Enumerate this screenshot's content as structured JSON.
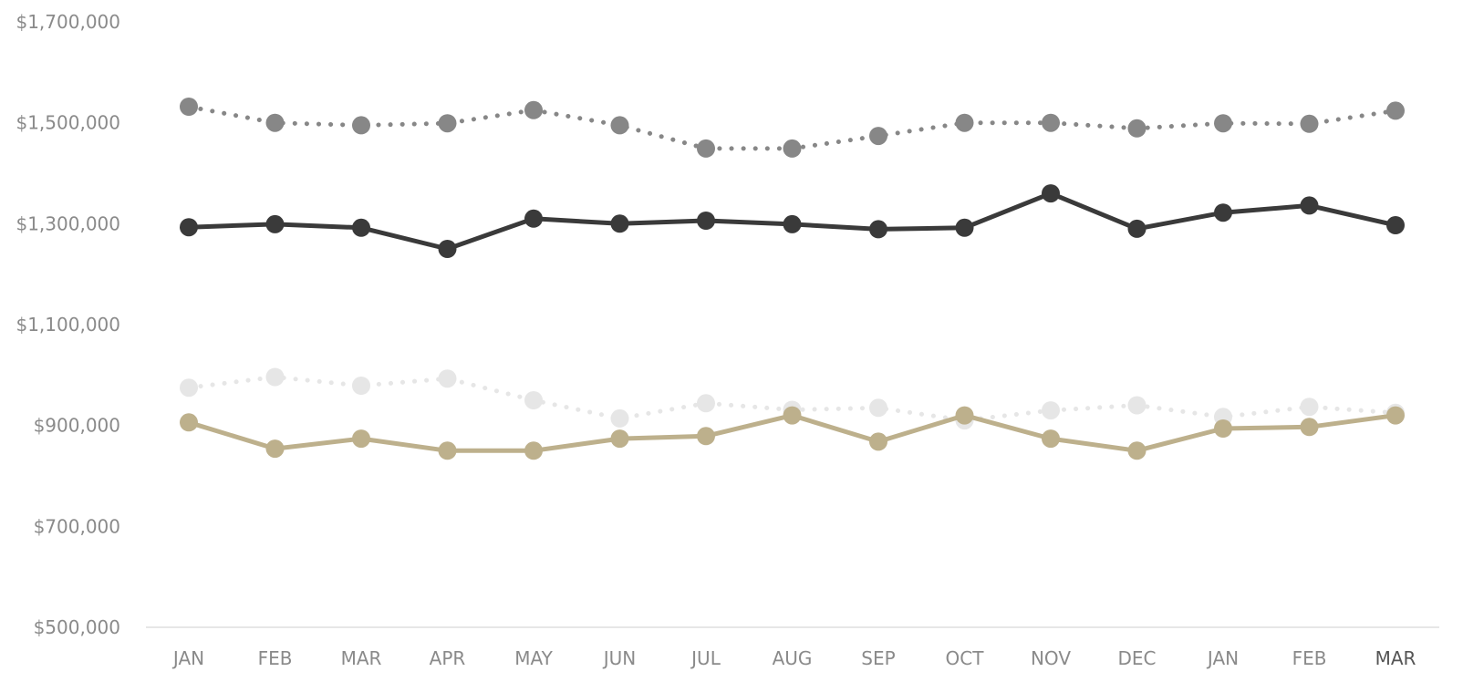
{
  "chart_data": {
    "type": "line",
    "title": "",
    "xlabel": "",
    "ylabel": "",
    "categories": [
      "JAN",
      "FEB",
      "MAR",
      "APR",
      "MAY",
      "JUN",
      "JUL",
      "AUG",
      "SEP",
      "OCT",
      "NOV",
      "DEC",
      "JAN",
      "FEB",
      "MAR"
    ],
    "y_ticks": [
      "$500,000",
      "$700,000",
      "$900,000",
      "$1,100,000",
      "$1,300,000",
      "$1,500,000",
      "$1,700,000"
    ],
    "ylim": [
      500000,
      1700000
    ],
    "grid": false,
    "legend": "none",
    "highlighted_category_index": 14,
    "series": [
      {
        "style": "dotted",
        "color": "#878787",
        "values": [
          1532000,
          1500000,
          1495000,
          1499000,
          1525000,
          1495000,
          1449000,
          1449000,
          1474000,
          1500000,
          1500000,
          1489000,
          1499000,
          1498000,
          1524000
        ]
      },
      {
        "style": "solid",
        "color": "#3a3a3a",
        "values": [
          1293000,
          1299000,
          1292000,
          1250000,
          1310000,
          1300000,
          1306000,
          1299000,
          1289000,
          1292000,
          1360000,
          1290000,
          1322000,
          1336000,
          1297000
        ]
      },
      {
        "style": "dotted",
        "color": "#e6e6e6",
        "values": [
          975000,
          996000,
          979000,
          993000,
          950000,
          914000,
          944000,
          931000,
          935000,
          910000,
          930000,
          940000,
          917000,
          937000,
          925000
        ]
      },
      {
        "style": "solid",
        "color": "#bdb08c",
        "values": [
          906000,
          854000,
          874000,
          850000,
          850000,
          874000,
          879000,
          920000,
          868000,
          920000,
          874000,
          850000,
          894000,
          897000,
          920000
        ]
      }
    ]
  }
}
